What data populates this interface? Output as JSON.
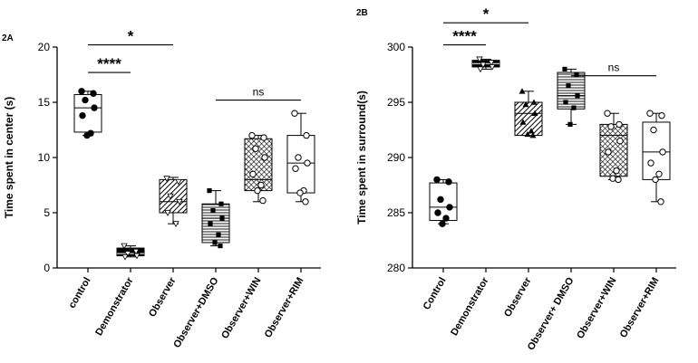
{
  "chart_data": [
    {
      "panel": "2A",
      "type": "box",
      "ylabel": "Time spent in center (s)",
      "ylim": [
        0,
        20
      ],
      "yticks": [
        0,
        5,
        10,
        15,
        20
      ],
      "categories": [
        "control",
        "Demonstrator",
        "Observer",
        "Observer+DMSO",
        "Observer+WIN",
        "Observer+RIM"
      ],
      "boxes": [
        {
          "category": "control",
          "min": 12,
          "q1": 12.3,
          "median": 14.5,
          "q3": 15.7,
          "max": 16,
          "fill": "none",
          "marker": "filled-circle",
          "points": [
            16,
            15.8,
            15.2,
            14.5,
            13.8,
            12.2,
            12.0
          ]
        },
        {
          "category": "Demonstrator",
          "min": 1,
          "q1": 1.1,
          "median": 1.3,
          "q3": 1.8,
          "max": 2,
          "fill": "solid",
          "marker": "open-triangle",
          "points": [
            2,
            1.5,
            1.3,
            1.1,
            1.0
          ]
        },
        {
          "category": "Observer",
          "min": 4,
          "q1": 5,
          "median": 6,
          "q3": 8,
          "max": 8.2,
          "fill": "diagonal-stripes",
          "marker": "open-triangle",
          "points": [
            8.1,
            7.8,
            6.5,
            6.0,
            5.0,
            4.0
          ]
        },
        {
          "category": "Observer+DMSO",
          "min": 2,
          "q1": 2.3,
          "median": 4.5,
          "q3": 5.8,
          "max": 7,
          "fill": "horizontal-lines",
          "marker": "filled-square",
          "points": [
            7,
            5.8,
            5.2,
            4.5,
            4.0,
            3.0,
            2.3,
            2.0
          ]
        },
        {
          "category": "Observer+WIN",
          "min": 6,
          "q1": 7,
          "median": 8,
          "q3": 11.7,
          "max": 12,
          "fill": "crosshatch",
          "marker": "open-circle",
          "points": [
            12,
            11.8,
            10.8,
            10.0,
            8.5,
            7.5,
            7.0,
            6.1
          ]
        },
        {
          "category": "Observer+RIM",
          "min": 6,
          "q1": 6.8,
          "median": 9.5,
          "q3": 12,
          "max": 14,
          "fill": "none",
          "marker": "open-circle",
          "points": [
            14,
            12,
            10,
            9.5,
            9,
            7,
            6.8,
            6
          ]
        }
      ],
      "annotations": [
        {
          "text": "****",
          "from": "control",
          "to": "Demonstrator",
          "y": 17.7
        },
        {
          "text": "*",
          "from": "control",
          "to": "Observer",
          "y": 20.2
        },
        {
          "text": "ns",
          "from": "Observer+DMSO",
          "to": "Observer+RIM",
          "y": 15.2
        }
      ]
    },
    {
      "panel": "2B",
      "type": "box",
      "ylabel": "Time spent in surround(s)",
      "ylim": [
        280,
        300
      ],
      "yticks": [
        280,
        285,
        290,
        295,
        300
      ],
      "categories": [
        "Control",
        "Demonstrator",
        "Observer",
        "Observer+ DMSO",
        "Observer+WIN",
        "Observer+RIM"
      ],
      "boxes": [
        {
          "category": "Control",
          "min": 284,
          "q1": 284.3,
          "median": 285.5,
          "q3": 287.7,
          "max": 288,
          "fill": "none",
          "marker": "filled-circle",
          "points": [
            288,
            287.8,
            286.2,
            285.5,
            285.0,
            284.5,
            284.0
          ]
        },
        {
          "category": "Demonstrator",
          "min": 298,
          "q1": 298.2,
          "median": 298.5,
          "q3": 298.8,
          "max": 298.9,
          "fill": "solid",
          "marker": "open-triangle",
          "points": [
            298.9,
            298.6,
            298.4,
            298.2,
            298.0
          ]
        },
        {
          "category": "Observer",
          "min": 292,
          "q1": 292,
          "median": 294,
          "q3": 295,
          "max": 296,
          "fill": "diagonal-stripes",
          "marker": "filled-triangle",
          "points": [
            296,
            295,
            294.8,
            294,
            293.2,
            292.4,
            292.1,
            292.0
          ]
        },
        {
          "category": "Observer+ DMSO",
          "min": 293,
          "q1": 294.4,
          "median": 295.6,
          "q3": 297.7,
          "max": 298,
          "fill": "horizontal-lines",
          "marker": "filled-square",
          "points": [
            298,
            297.5,
            296.5,
            295.6,
            295.0,
            294.5,
            293.0
          ]
        },
        {
          "category": "Observer+WIN",
          "min": 288,
          "q1": 288.3,
          "median": 292,
          "q3": 293,
          "max": 294,
          "fill": "crosshatch",
          "marker": "open-circle",
          "points": [
            294,
            293,
            292.8,
            291.5,
            290.5,
            288.8,
            288.1,
            288.0
          ]
        },
        {
          "category": "Observer+RIM",
          "min": 286,
          "q1": 288,
          "median": 290.5,
          "q3": 293.2,
          "max": 294,
          "fill": "none",
          "marker": "open-circle",
          "points": [
            294,
            293.8,
            292.5,
            290.5,
            289.5,
            288.5,
            288.0,
            286.0
          ]
        }
      ],
      "annotations": [
        {
          "text": "****",
          "from": "Control",
          "to": "Demonstrator",
          "y": 300.2
        },
        {
          "text": "*",
          "from": "Control",
          "to": "Observer",
          "y": 302.2
        },
        {
          "text": "ns",
          "from": "Observer+ DMSO",
          "to": "Observer+RIM",
          "y": 297.4
        }
      ]
    }
  ],
  "panel_labels": [
    "2A",
    "2B"
  ]
}
